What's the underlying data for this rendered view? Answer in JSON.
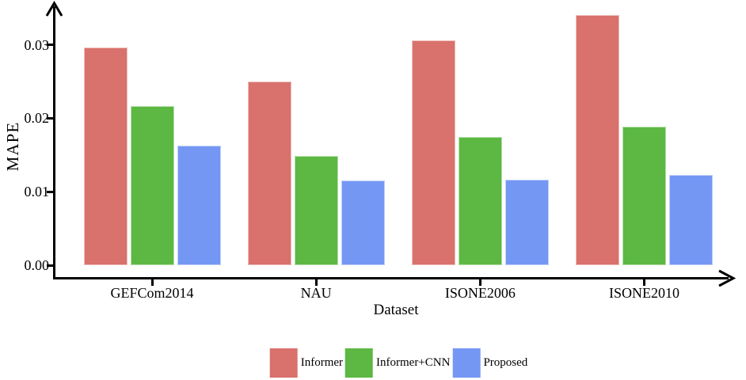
{
  "chart_data": {
    "type": "bar",
    "title": "",
    "xlabel": "Dataset",
    "ylabel": "MAPE",
    "categories": [
      "GEFCom2014",
      "NAU",
      "ISONE2006",
      "ISONE2010"
    ],
    "series": [
      {
        "name": "Informer",
        "color": "#d9716c",
        "values": [
          0.0296,
          0.025,
          0.0306,
          0.034
        ]
      },
      {
        "name": "Informer+CNN",
        "color": "#5cb843",
        "values": [
          0.0217,
          0.0149,
          0.0175,
          0.0189
        ]
      },
      {
        "name": "Proposed",
        "color": "#7497f4",
        "values": [
          0.0163,
          0.0115,
          0.0116,
          0.0123
        ]
      }
    ],
    "y_ticks": [
      0,
      0.01,
      0.02,
      0.03
    ],
    "y_tick_labels": [
      "0.00",
      "0.01",
      "0.02",
      "0.03"
    ],
    "ylim": [
      0,
      0.0355
    ],
    "grid": false,
    "legend_position": "bottom",
    "axis_color": "#000000",
    "background_color": "#ffffff"
  }
}
